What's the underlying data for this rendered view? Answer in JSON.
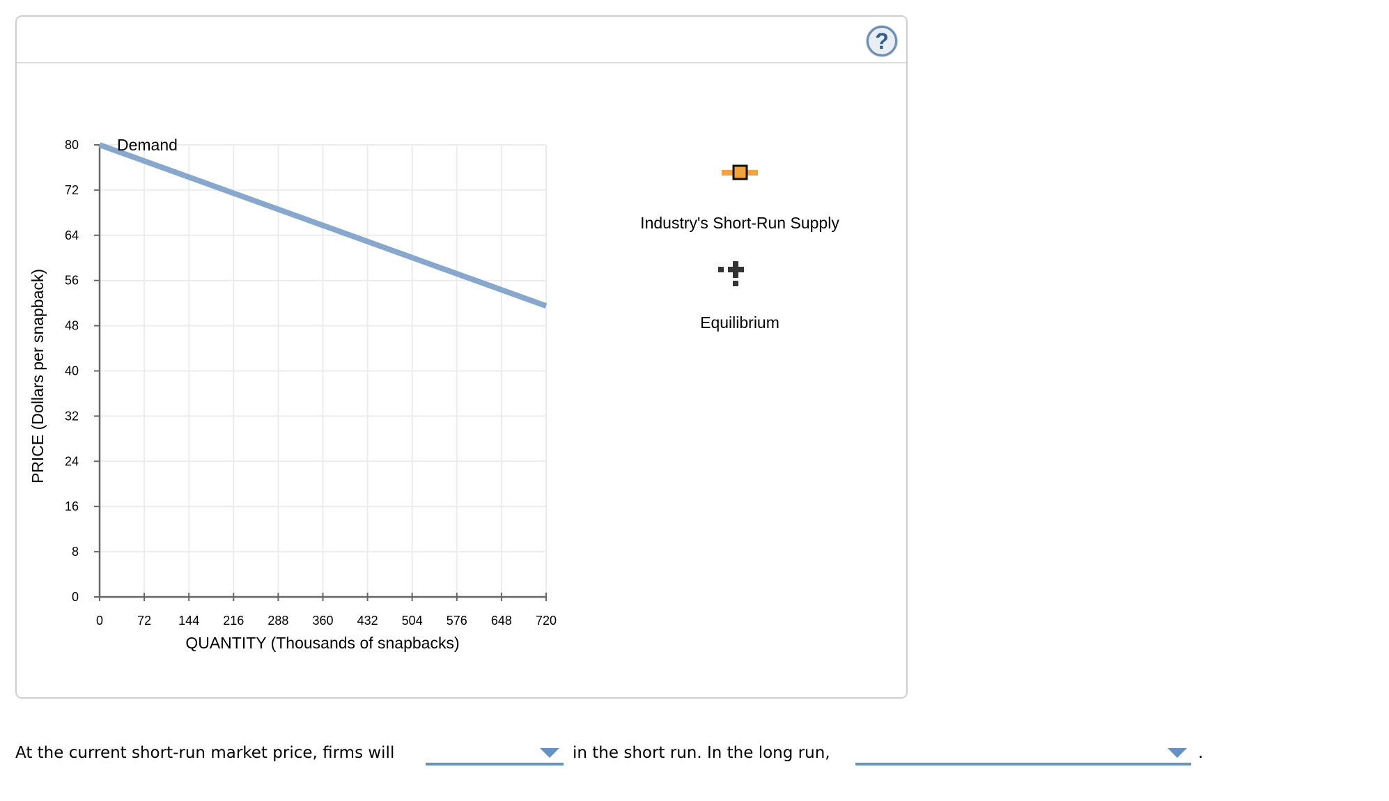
{
  "panel": {
    "help_icon": "question-mark-circle-icon",
    "help_label": "?"
  },
  "chart_data": {
    "type": "line",
    "title": "",
    "xlabel": "QUANTITY (Thousands of snapbacks)",
    "ylabel": "PRICE (Dollars per snapback)",
    "xlim": [
      0,
      720
    ],
    "ylim": [
      0,
      80
    ],
    "x_ticks": [
      "0",
      "72",
      "144",
      "216",
      "288",
      "360",
      "432",
      "504",
      "576",
      "648",
      "720"
    ],
    "y_ticks": [
      "0",
      "8",
      "16",
      "24",
      "32",
      "40",
      "48",
      "56",
      "64",
      "72",
      "80"
    ],
    "grid": true,
    "series": [
      {
        "name": "Demand",
        "color": "#86a8cf",
        "x": [
          0,
          720
        ],
        "y": [
          80,
          51.5
        ]
      }
    ],
    "legend": [
      {
        "name": "Industry's Short-Run Supply",
        "marker": "orange-square-line",
        "color": "#f3a33a"
      },
      {
        "name": "Equilibrium",
        "marker": "black-cross-dotted",
        "color": "#333333"
      }
    ],
    "legend_position": "right"
  },
  "question": {
    "part1": "At the current short-run market price, firms will",
    "dropdown1_value": "",
    "part2": "in the short run. In the long run,",
    "dropdown2_value": "",
    "part3": "."
  },
  "colors": {
    "dropdown_accent": "#6393c4",
    "demand_line": "#86a8cf",
    "supply_marker": "#f3a33a"
  }
}
